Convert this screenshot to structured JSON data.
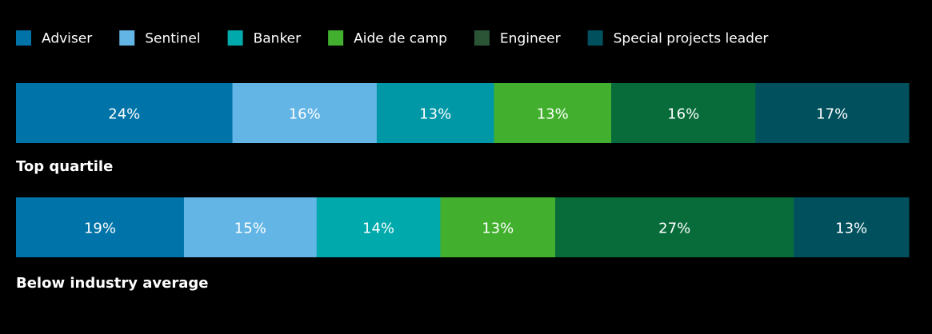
{
  "chart_data": {
    "type": "bar",
    "orientation": "horizontal",
    "stacked": true,
    "normalized_percent": true,
    "categories": [
      "Top quartile",
      "Below industry average"
    ],
    "series": [
      {
        "name": "Adviser",
        "values": [
          24,
          19
        ],
        "color": "#0073A8"
      },
      {
        "name": "Sentinel",
        "values": [
          16,
          15
        ],
        "color": "#63B5E5"
      },
      {
        "name": "Banker",
        "values": [
          13,
          14
        ],
        "colors": [
          "#0097A7",
          "#00A9AC"
        ],
        "legend_color": "#00A9AC"
      },
      {
        "name": "Aide de camp",
        "values": [
          13,
          13
        ],
        "color": "#42B02E"
      },
      {
        "name": "Engineer",
        "values": [
          16,
          27
        ],
        "color": "#076C3A",
        "legend_color": "#2B5436"
      },
      {
        "name": "Special projects leader",
        "values": [
          17,
          13
        ],
        "color": "#00505E"
      }
    ],
    "value_suffix": "%",
    "legend_position": "top-left",
    "category_label_position": "below-bar",
    "grid": false,
    "title": "",
    "xlabel": "",
    "ylabel": ""
  }
}
